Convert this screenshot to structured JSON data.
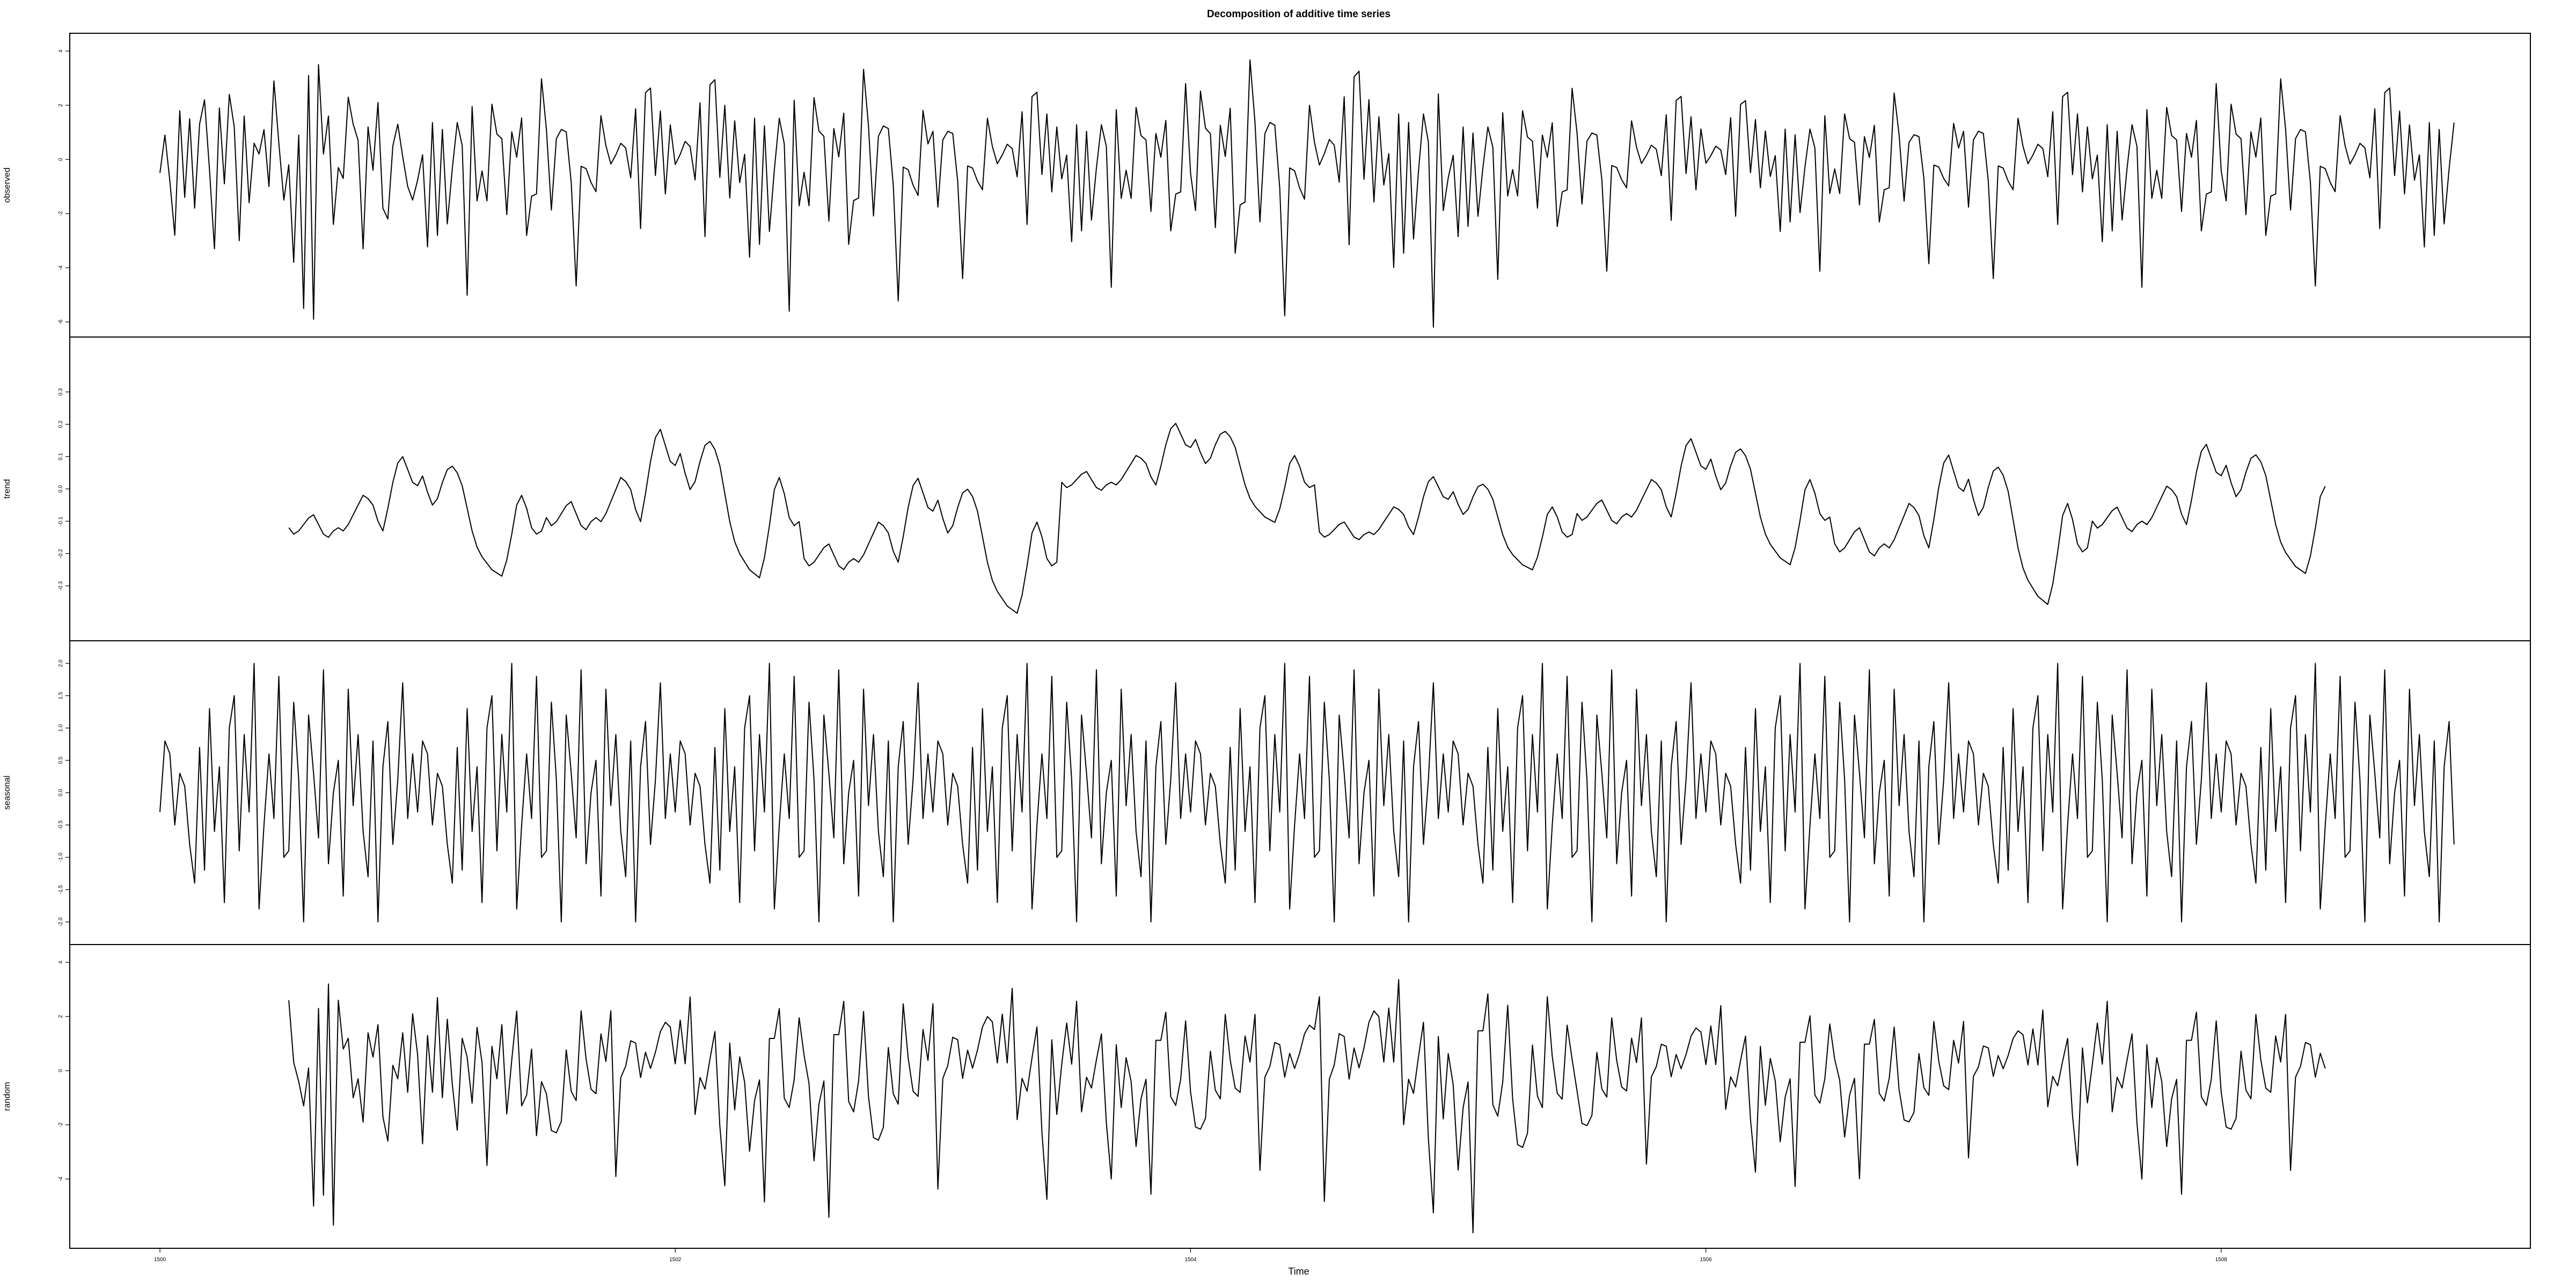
{
  "chart_data": {
    "type": "line",
    "title": "Decomposition of additive time series",
    "xlabel": "Time",
    "frequency": 52,
    "x_start": 1500,
    "x_end": 1508.9,
    "xlim": [
      1499.65,
      1509.2
    ],
    "x_ticks": [
      1500,
      1502,
      1504,
      1506,
      1508
    ],
    "x_tick_labels": [
      "1500",
      "1502",
      "1504",
      "1506",
      "1508"
    ],
    "panels": [
      {
        "name": "observed",
        "ylabel": "observed",
        "ylim": [
          -6.2,
          4.3
        ],
        "y_ticks": [
          -6,
          -4,
          -2,
          0,
          2,
          4
        ],
        "y_tick_labels": [
          "-6",
          "-4",
          "-2",
          "0",
          "2",
          "4"
        ],
        "start": 1500,
        "values": [
          -0.5,
          0.9,
          -0.8,
          -2.8,
          1.8,
          -1.4,
          1.5,
          -1.8,
          1.3,
          2.2,
          -0.4,
          -3.3,
          1.9,
          -0.9,
          2.4,
          1.2,
          -3.0,
          1.6,
          -1.6,
          0.6,
          0.2,
          1.1,
          -1.0,
          2.9,
          0.6,
          -1.5,
          -0.2,
          -3.8,
          0.9,
          -5.5,
          3.1,
          -5.9,
          3.5,
          0.2,
          1.6,
          -2.4,
          -0.3,
          -0.7,
          2.3,
          1.3,
          0.7,
          -3.3,
          1.2,
          -0.4,
          2.1,
          -1.8,
          -2.2,
          0.5,
          1.3,
          0.1,
          -1.0,
          -1.5
        ],
        "extended": true
      },
      {
        "name": "trend",
        "ylabel": "trend",
        "ylim": [
          -0.44,
          0.44
        ],
        "y_ticks": [
          -0.3,
          -0.2,
          -0.1,
          0.0,
          0.1,
          0.2,
          0.3
        ],
        "y_tick_labels": [
          "-0.3",
          "-0.2",
          "-0.1",
          "0.0",
          "0.1",
          "0.2",
          "0.3"
        ],
        "start": 1500.5,
        "values": [
          -0.12,
          -0.14,
          -0.13,
          -0.11,
          -0.09,
          -0.08,
          -0.11,
          -0.14,
          -0.15,
          -0.13,
          -0.12,
          -0.13,
          -0.11,
          -0.08,
          -0.05,
          -0.02,
          -0.03,
          -0.05,
          -0.1,
          -0.13,
          -0.06,
          0.02,
          0.08,
          0.1,
          0.06,
          0.02,
          0.01,
          0.04,
          -0.01,
          -0.05,
          -0.03,
          0.02,
          0.06,
          0.07,
          0.05,
          0.01,
          -0.06,
          -0.13,
          -0.18,
          -0.21,
          -0.23,
          -0.25,
          -0.26,
          -0.27,
          -0.22,
          -0.14,
          -0.05,
          -0.02,
          -0.06,
          -0.12,
          -0.14,
          -0.13
        ]
      },
      {
        "name": "seasonal",
        "ylabel": "seasonal",
        "ylim": [
          -2.2,
          2.2
        ],
        "y_ticks": [
          -2.0,
          -1.5,
          -1.0,
          -0.5,
          0.0,
          0.5,
          1.0,
          1.5,
          2.0
        ],
        "y_tick_labels": [
          "-2.0",
          "-1.5",
          "-1.0",
          "-0.5",
          "0.0",
          "0.5",
          "1.0",
          "1.5",
          "2.0"
        ],
        "start": 1500,
        "values": [
          -0.3,
          0.8,
          0.6,
          -0.5,
          0.3,
          0.1,
          -0.8,
          -1.4,
          0.7,
          -1.2,
          1.3,
          -0.6,
          0.4,
          -1.7,
          1.0,
          1.5,
          -0.9,
          0.9,
          -0.3,
          2.0,
          -1.8,
          -0.5,
          0.6,
          -0.4,
          1.8,
          -1.0,
          -0.9,
          1.4,
          0.2,
          -2.0,
          1.2,
          0.3,
          -0.7,
          1.9,
          -1.1,
          0.0,
          0.5,
          -1.6,
          1.6,
          -0.2,
          0.9,
          -0.6,
          -1.3,
          0.8,
          -2.0,
          0.4,
          1.1,
          -0.8,
          0.2,
          1.7,
          -0.4,
          0.6
        ],
        "repeat": true
      },
      {
        "name": "random",
        "ylabel": "random",
        "ylim": [
          -6.2,
          4.3
        ],
        "y_ticks": [
          -4,
          -2,
          0,
          2,
          4
        ],
        "y_tick_labels": [
          "-4",
          "-2",
          "0",
          "2",
          "4"
        ],
        "start": 1500.5,
        "values": [
          2.6,
          0.3,
          -0.4,
          -1.3,
          0.1,
          -5.0,
          2.3,
          -4.6,
          3.2,
          -5.7,
          2.6,
          0.8,
          1.2,
          -1.0,
          -0.3,
          -1.9,
          1.4,
          0.5,
          1.7,
          -1.7,
          -2.6,
          0.2,
          -0.3,
          1.4,
          -0.8,
          2.1,
          0.6,
          -2.7,
          1.3,
          -0.8,
          2.7,
          -1.0,
          1.9,
          -0.5,
          -2.2,
          1.2,
          0.5,
          -1.2,
          1.6,
          0.3,
          -3.5,
          0.9,
          -0.3,
          1.7,
          -1.6,
          0.4,
          2.2,
          -1.3,
          -0.9,
          0.8,
          -2.4,
          -0.4
        ]
      }
    ]
  }
}
